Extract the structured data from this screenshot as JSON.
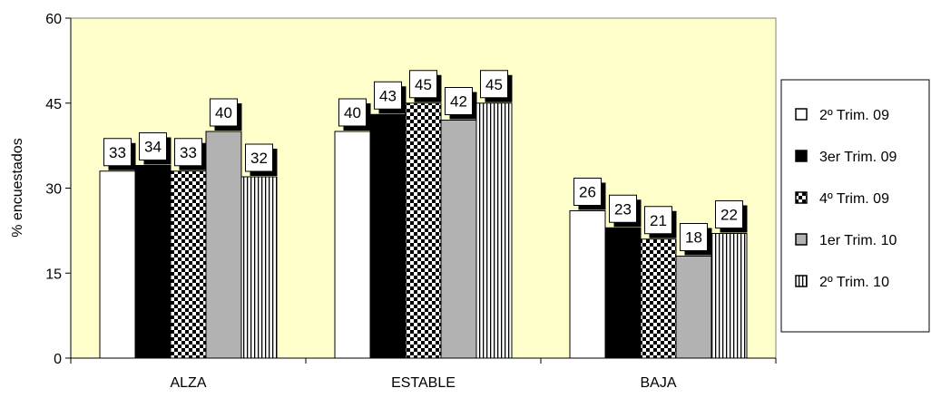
{
  "chart_data": {
    "type": "bar",
    "title": "",
    "xlabel": "",
    "ylabel": "% encuestados",
    "ylim": [
      0,
      60
    ],
    "yticks": [
      0,
      15,
      30,
      45,
      60
    ],
    "grid": false,
    "legend_position": "right",
    "plot_background": "#FFFFCC",
    "categories": [
      "ALZA",
      "ESTABLE",
      "BAJA"
    ],
    "series": [
      {
        "name": "2º Trim. 09",
        "values": [
          33,
          40,
          26
        ],
        "fill": "white",
        "value_labels": [
          "33",
          "40",
          "26"
        ]
      },
      {
        "name": "3er Trim. 09",
        "values": [
          34,
          43,
          23
        ],
        "fill": "black",
        "value_labels": [
          "34",
          "43",
          "23"
        ]
      },
      {
        "name": "4º Trim. 09",
        "values": [
          33,
          45,
          21
        ],
        "fill": "checkerboard",
        "value_labels": [
          "33",
          "45",
          "21"
        ]
      },
      {
        "name": "1er Trim. 10",
        "values": [
          40,
          42,
          18
        ],
        "fill": "gray",
        "value_labels": [
          "40",
          "42",
          "18"
        ]
      },
      {
        "name": "2º Trim. 10",
        "values": [
          32,
          45,
          22
        ],
        "fill": "vertical-stripes",
        "value_labels": [
          "32",
          "45",
          "22"
        ]
      }
    ]
  },
  "colors": {
    "plot_background": "#FFFFCC",
    "gray_bar": "#B2B2B2",
    "black_bar": "#000000",
    "white_bar": "#FFFFFF",
    "shadow": "#000000"
  }
}
